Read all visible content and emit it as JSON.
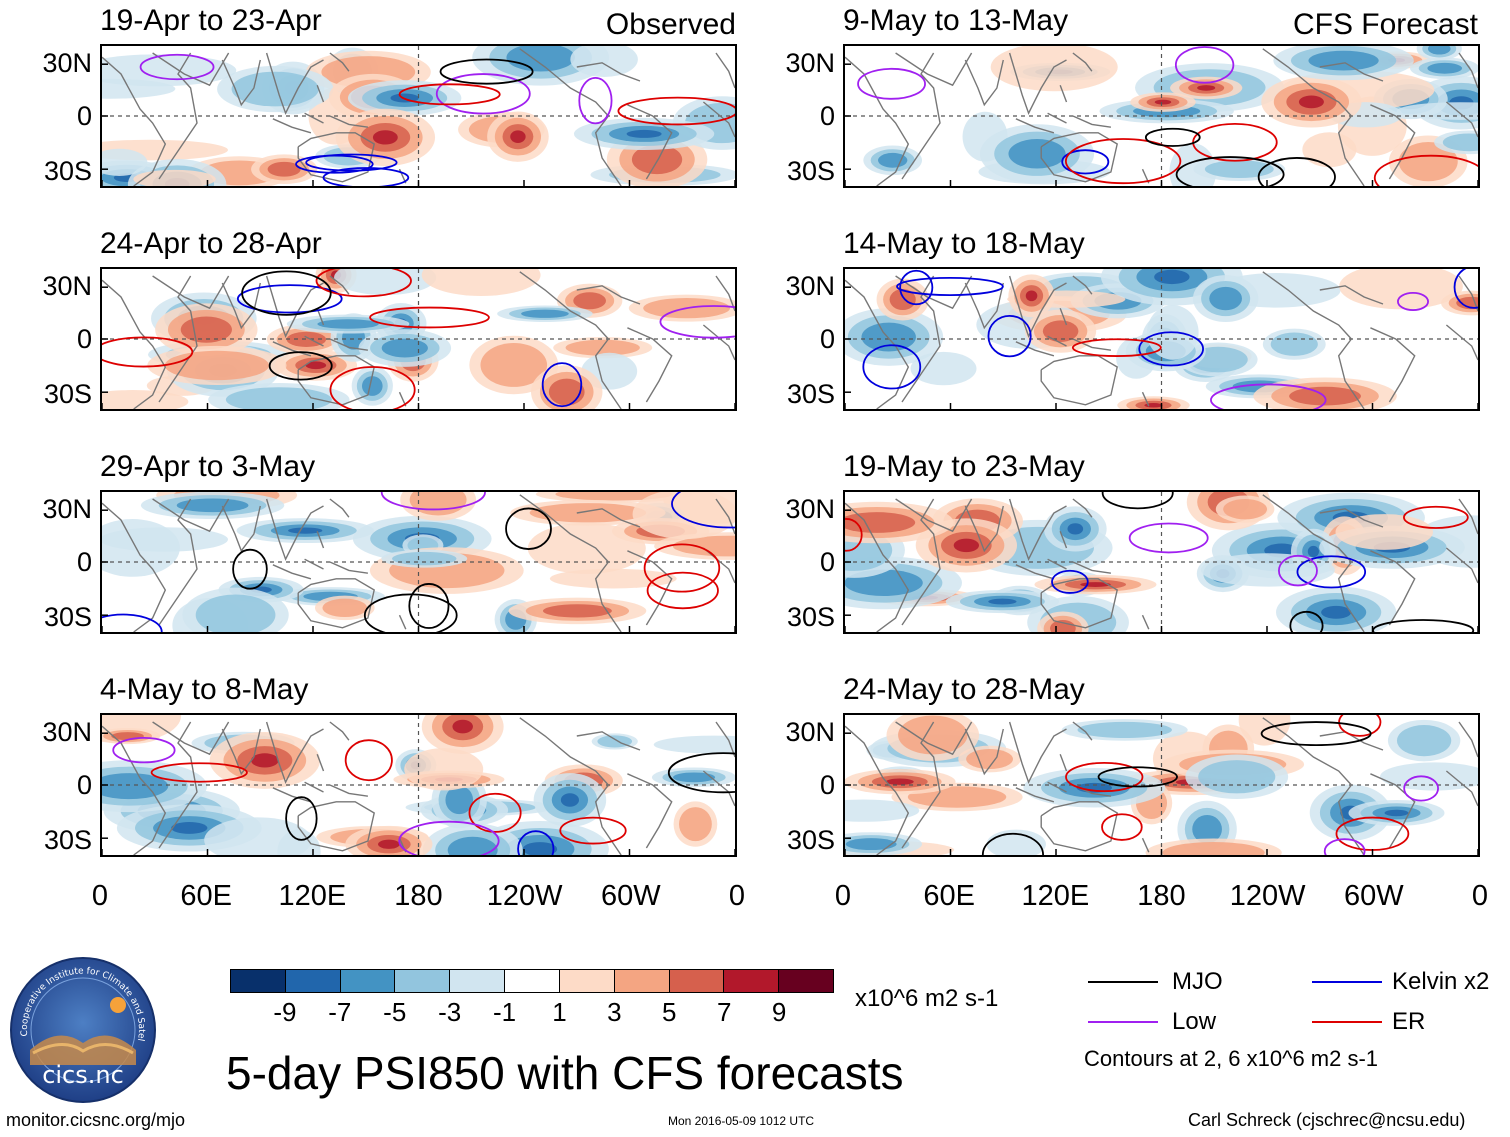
{
  "column_headers": {
    "observed": "Observed",
    "forecast": "CFS Forecast"
  },
  "panels": [
    {
      "id": "p1",
      "title": "19-Apr to 23-Apr",
      "col": "observed",
      "row": 0
    },
    {
      "id": "p2",
      "title": "24-Apr to 28-Apr",
      "col": "observed",
      "row": 1
    },
    {
      "id": "p3",
      "title": "29-Apr to 3-May",
      "col": "observed",
      "row": 2
    },
    {
      "id": "p4",
      "title": "4-May to 8-May",
      "col": "observed",
      "row": 3
    },
    {
      "id": "p5",
      "title": "9-May to 13-May",
      "col": "forecast",
      "row": 0
    },
    {
      "id": "p6",
      "title": "14-May to 18-May",
      "col": "forecast",
      "row": 1
    },
    {
      "id": "p7",
      "title": "19-May to 23-May",
      "col": "forecast",
      "row": 2
    },
    {
      "id": "p8",
      "title": "24-May to 28-May",
      "col": "forecast",
      "row": 3
    }
  ],
  "lat_labels": [
    "30N",
    "0",
    "30S"
  ],
  "lon_labels": [
    "0",
    "60E",
    "120E",
    "180",
    "120W",
    "60W",
    "0"
  ],
  "colorbar": {
    "colors": [
      "#08306b",
      "#2166ac",
      "#4393c3",
      "#92c5de",
      "#d1e5f0",
      "#ffffff",
      "#fddbc7",
      "#f4a582",
      "#d6604d",
      "#b2182b",
      "#67001f"
    ],
    "labels": [
      "-9",
      "-7",
      "-5",
      "-3",
      "-1",
      "1",
      "3",
      "5",
      "7",
      "9"
    ],
    "units": "x10^6 m2 s-1"
  },
  "legend": {
    "items": [
      {
        "label": "MJO",
        "color": "#000000"
      },
      {
        "label": "Kelvin x2",
        "color": "#0000dd"
      },
      {
        "label": "Low",
        "color": "#a020f0"
      },
      {
        "label": "ER",
        "color": "#dd0000"
      }
    ],
    "note": "Contours at 2, 6 x10^6 m2 s-1"
  },
  "logo": {
    "name": "cics.nc",
    "ring_text": "Cooperative Institute for Climate and Satellites"
  },
  "title": "5-day PSI850 with CFS forecasts",
  "footer": {
    "left": "monitor.cicsnc.org/mjo",
    "center": "Mon 2016-05-09 1012 UTC",
    "right": "Carl Schreck (cjschrec@ncsu.edu)"
  }
}
